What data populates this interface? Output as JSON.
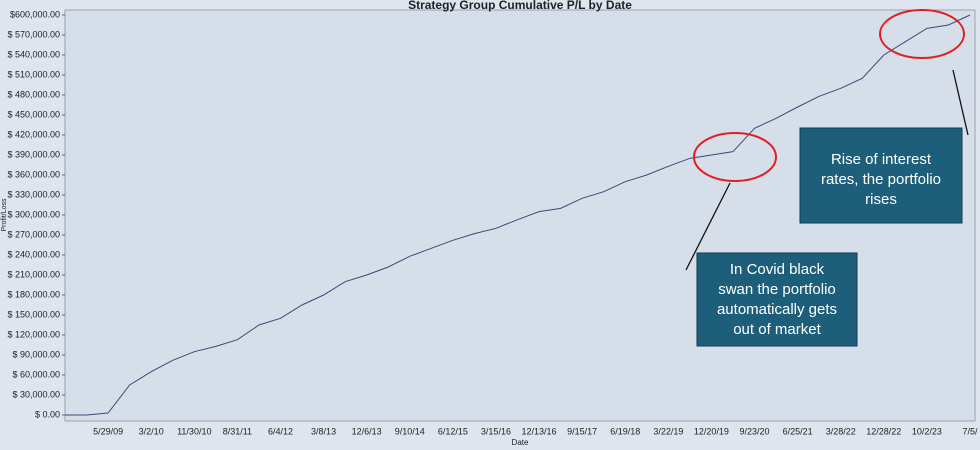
{
  "chart_data": {
    "type": "line",
    "title": "Strategy Group Cumulative P/L by Date",
    "x_label": "Date",
    "y_label": "Profit/Loss",
    "categories": [
      null,
      null,
      "5/29/09",
      null,
      "3/2/10",
      null,
      "11/30/10",
      null,
      "8/31/11",
      null,
      "6/4/12",
      null,
      "3/8/13",
      null,
      "12/6/13",
      null,
      "9/10/14",
      null,
      "6/12/15",
      null,
      "3/15/16",
      null,
      "12/13/16",
      null,
      "9/15/17",
      null,
      "6/19/18",
      null,
      "3/22/19",
      null,
      "12/20/19",
      null,
      "9/23/20",
      null,
      "6/25/21",
      null,
      "3/28/22",
      null,
      "12/28/22",
      null,
      "10/2/23",
      null,
      "7/5/"
    ],
    "values": [
      0,
      0,
      3000,
      45000,
      65000,
      82000,
      95000,
      103000,
      113000,
      135000,
      145000,
      165000,
      180000,
      200000,
      210000,
      222000,
      238000,
      250000,
      262000,
      272000,
      280000,
      293000,
      305000,
      310000,
      325000,
      335000,
      350000,
      360000,
      373000,
      385000,
      390000,
      395000,
      430000,
      445000,
      462000,
      478000,
      490000,
      505000,
      540000,
      560000,
      580000,
      585000,
      600000
    ],
    "color": "#3a4a7a",
    "ylim": [
      0,
      600000
    ],
    "yticks": [
      {
        "value": 0,
        "label": "$ 0.00"
      },
      {
        "value": 30000,
        "label": "$ 30,000.00"
      },
      {
        "value": 60000,
        "label": "$ 60,000.00"
      },
      {
        "value": 90000,
        "label": "$ 90,000.00"
      },
      {
        "value": 120000,
        "label": "$ 120,000.00"
      },
      {
        "value": 150000,
        "label": "$ 150,000.00"
      },
      {
        "value": 180000,
        "label": "$ 180,000.00"
      },
      {
        "value": 210000,
        "label": "$ 210,000.00"
      },
      {
        "value": 240000,
        "label": "$ 240,000.00"
      },
      {
        "value": 270000,
        "label": "$ 270,000.00"
      },
      {
        "value": 300000,
        "label": "$ 300,000.00"
      },
      {
        "value": 330000,
        "label": "$ 330,000.00"
      },
      {
        "value": 360000,
        "label": "$ 360,000.00"
      },
      {
        "value": 390000,
        "label": "$ 390,000.00"
      },
      {
        "value": 420000,
        "label": "$ 420,000.00"
      },
      {
        "value": 450000,
        "label": "$ 450,000.00"
      },
      {
        "value": 480000,
        "label": "$ 480,000.00"
      },
      {
        "value": 510000,
        "label": "$ 510,000.00"
      },
      {
        "value": 540000,
        "label": "$ 540,000.00"
      },
      {
        "value": 570000,
        "label": "$ 570,000.00"
      },
      {
        "value": 600000,
        "label": "$600,000.00"
      }
    ],
    "annotations": [
      {
        "lines": [
          "In Covid black",
          "swan the portfolio",
          "automatically gets",
          "out of market"
        ]
      },
      {
        "lines": [
          "Rise of interest",
          "rates, the portfolio",
          "rises"
        ]
      }
    ]
  }
}
